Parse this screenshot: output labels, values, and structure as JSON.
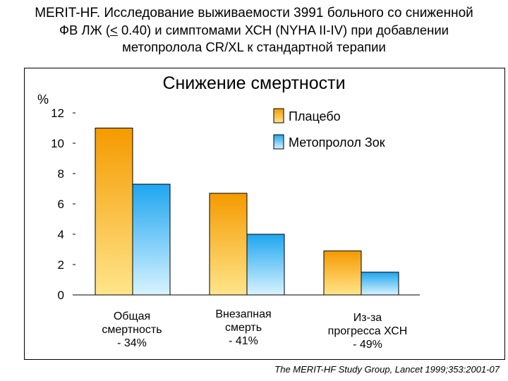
{
  "header": {
    "line1_brand": "MERIT-HF.",
    "line1_rest": " Исследование выживаемости 3991 больного со сниженной",
    "line2_pre": "ФВ ЛЖ (",
    "line2_lt": "<",
    "line2_post": " 0.40) и симптомами ХСН (NYHA II-IV) при добавлении",
    "line3": "метопролола CR/XL к стандартной терапии"
  },
  "citation": "The MERIT-HF Study Group, Lancet 1999;353:2001-07",
  "colors": {
    "placebo_top": "#f59a00",
    "placebo_bottom": "#ffe58a",
    "metoprolol_top": "#1ea6f0",
    "metoprolol_bottom": "#d8f3ff"
  },
  "chart_data": {
    "type": "bar",
    "title": "Снижение смертности",
    "ylabel": "%",
    "ylim": [
      0,
      12
    ],
    "yticks": [
      0,
      2,
      4,
      6,
      8,
      10,
      12
    ],
    "categories": [
      [
        "Общая",
        "смертность",
        "- 34%"
      ],
      [
        "Внезапная",
        "смерть",
        "- 41%"
      ],
      [
        "Из-за",
        "прогресса ХСН",
        "- 49%"
      ]
    ],
    "series": [
      {
        "name": "Плацебо",
        "values": [
          11.0,
          6.7,
          2.9
        ]
      },
      {
        "name": "Метопролол Зок",
        "values": [
          7.3,
          4.0,
          1.5
        ]
      }
    ],
    "legend_position": "top-right",
    "grid": false
  }
}
